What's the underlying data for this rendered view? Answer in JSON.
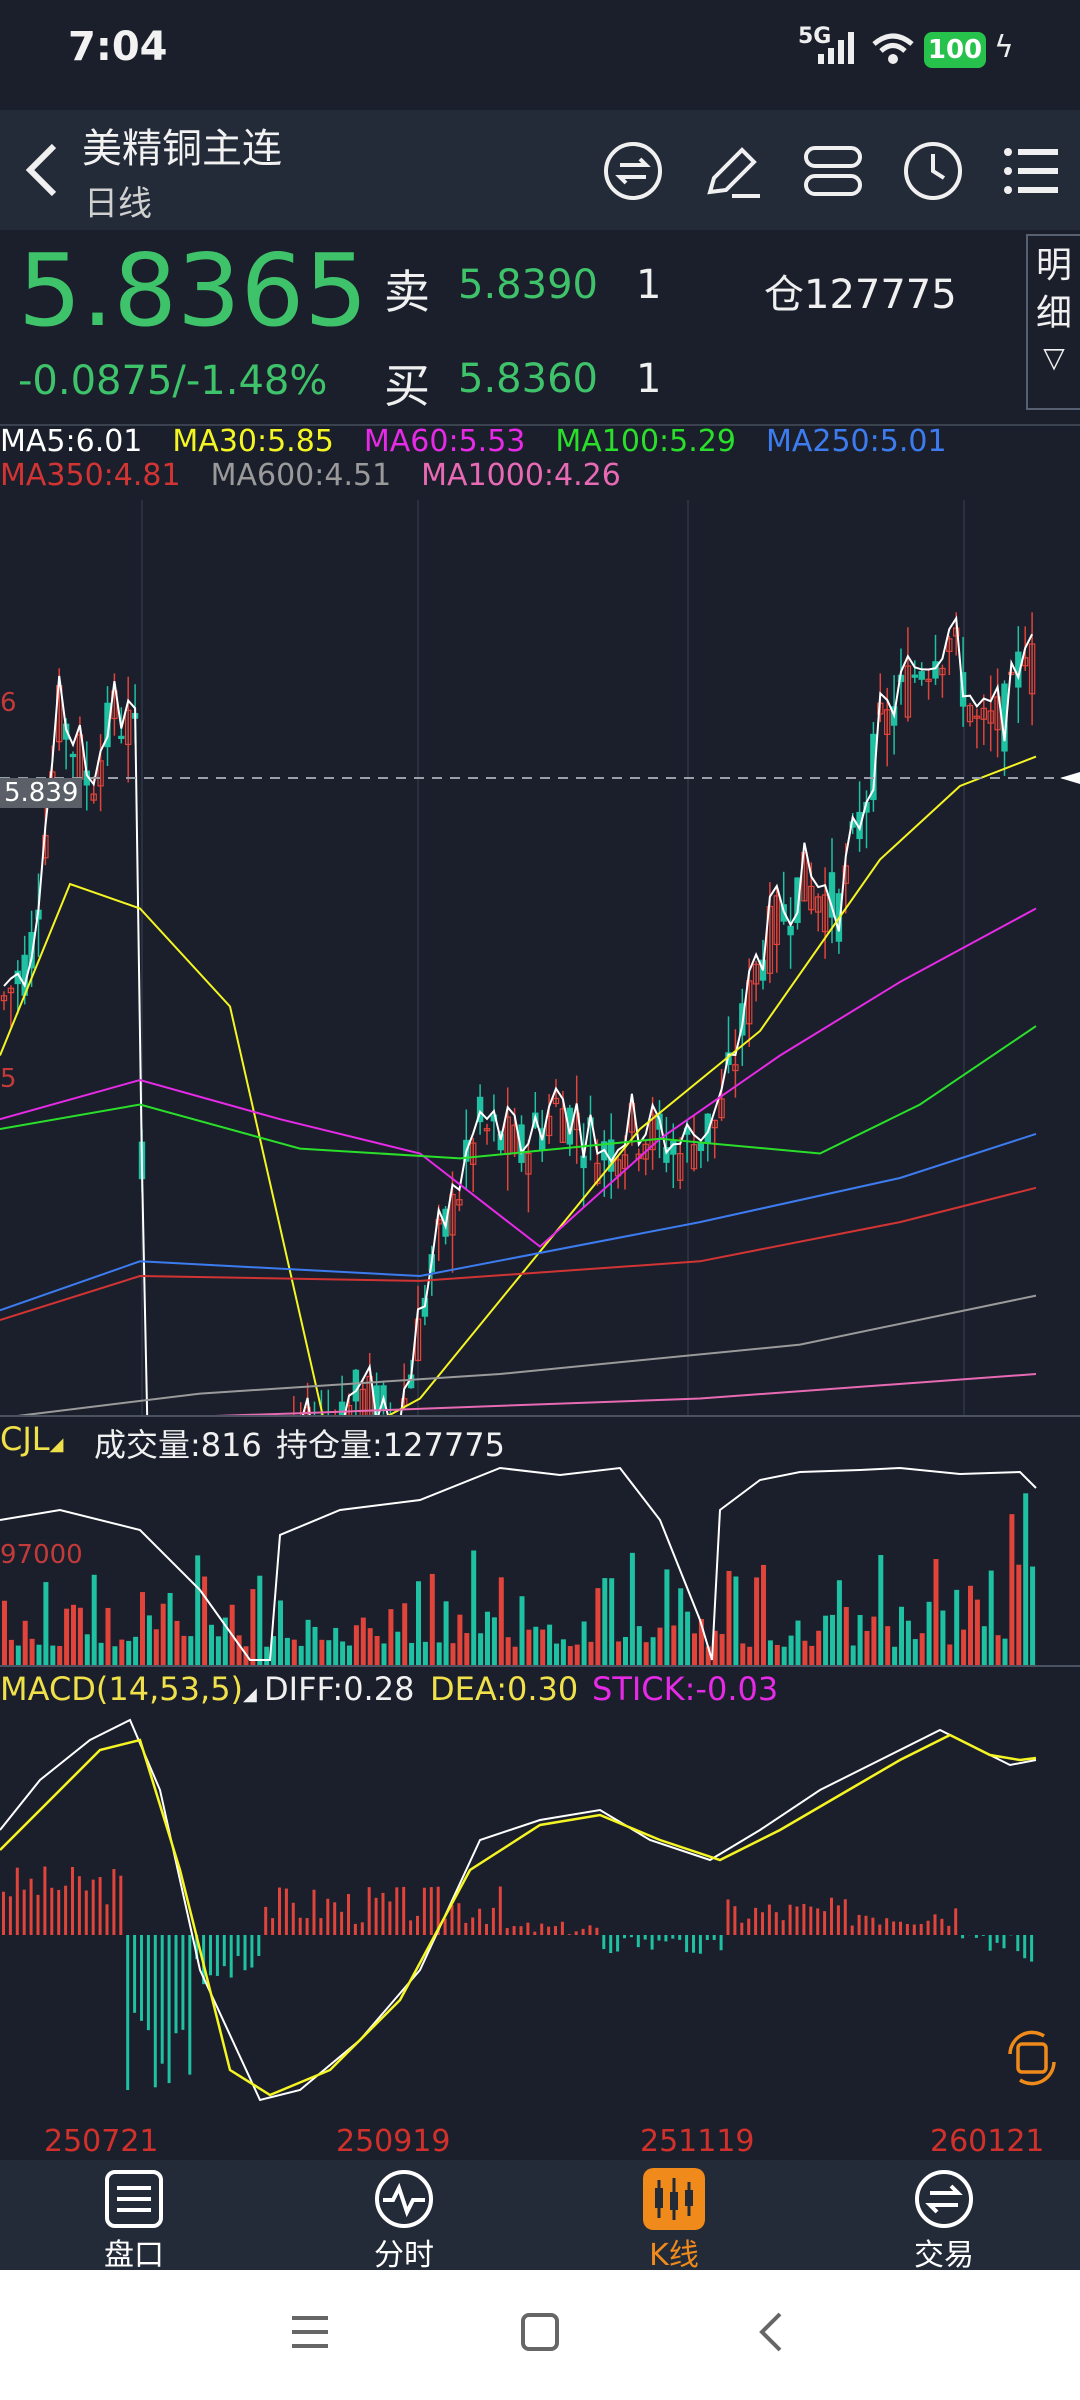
{
  "status": {
    "time": "7:04",
    "network": "5G",
    "battery": "100"
  },
  "header": {
    "title": "美精铜主连",
    "subtitle": "日线",
    "icons": [
      "switch-icon",
      "pencil-icon",
      "route-icon",
      "clock-icon",
      "list-icon"
    ]
  },
  "quote": {
    "price": "5.8365",
    "change": "-0.0875/-1.48%",
    "sell_label": "卖",
    "sell_price": "5.8390",
    "sell_qty": "1",
    "buy_label": "买",
    "buy_price": "5.8360",
    "buy_qty": "1",
    "oi_label": "仓",
    "oi_value": "127775",
    "detail_label": "明细",
    "detail_arrow": "▽"
  },
  "ma": {
    "row1": [
      {
        "t": "MA5:6.01",
        "c": "#ffffff"
      },
      {
        "t": "MA30:5.85",
        "c": "#f5f523"
      },
      {
        "t": "MA60:5.53",
        "c": "#e62ae6"
      },
      {
        "t": "MA100:5.29",
        "c": "#2adf2a"
      },
      {
        "t": "MA250:5.01",
        "c": "#3d7cf0"
      }
    ],
    "row2": [
      {
        "t": "MA350:4.81",
        "c": "#d23434"
      },
      {
        "t": "MA600:4.51",
        "c": "#9a9a9a"
      },
      {
        "t": "MA1000:4.26",
        "c": "#e86ab4"
      }
    ]
  },
  "main_axis": {
    "label_6": "6",
    "label_5": "5",
    "last": "5.839"
  },
  "cjl": {
    "label": "CJL",
    "vol": "成交量:816",
    "oi": "持仓量:127775",
    "ref": "97000"
  },
  "macd": {
    "label": "MACD(14,53,5)",
    "diff": "DIFF:0.28",
    "dea": "DEA:0.30",
    "stick": "STICK:-0.03"
  },
  "dates": [
    "250721",
    "250919",
    "251119",
    "260121"
  ],
  "tabs": [
    {
      "label": "盘口",
      "icon": "table-icon"
    },
    {
      "label": "分时",
      "icon": "pulse-icon"
    },
    {
      "label": "K线",
      "icon": "candle-icon"
    },
    {
      "label": "交易",
      "icon": "trade-icon"
    }
  ],
  "chart_data": {
    "type": "line",
    "title": "",
    "x": [
      "250721",
      "250919",
      "251119",
      "260121"
    ],
    "series": [
      {
        "name": "MA5",
        "values": [
          5.72,
          4.45,
          5.15,
          6.01
        ]
      },
      {
        "name": "MA30",
        "values": [
          5.3,
          4.55,
          5.05,
          5.85
        ]
      },
      {
        "name": "MA60",
        "values": [
          5.0,
          5.0,
          4.75,
          5.53
        ]
      },
      {
        "name": "MA100",
        "values": [
          4.95,
          4.95,
          5.0,
          5.29
        ]
      },
      {
        "name": "MA250",
        "values": [
          4.55,
          4.65,
          4.8,
          5.01
        ]
      },
      {
        "name": "MA350",
        "values": [
          4.55,
          4.6,
          4.65,
          4.81
        ]
      },
      {
        "name": "MA600",
        "values": [
          4.0,
          4.15,
          4.3,
          4.51
        ]
      },
      {
        "name": "MA1000",
        "values": [
          3.9,
          3.98,
          4.1,
          4.26
        ]
      }
    ],
    "last_price": 5.839,
    "volume_ref": 97000,
    "macd": {
      "diff": 0.28,
      "dea": 0.3,
      "stick": -0.03
    }
  }
}
